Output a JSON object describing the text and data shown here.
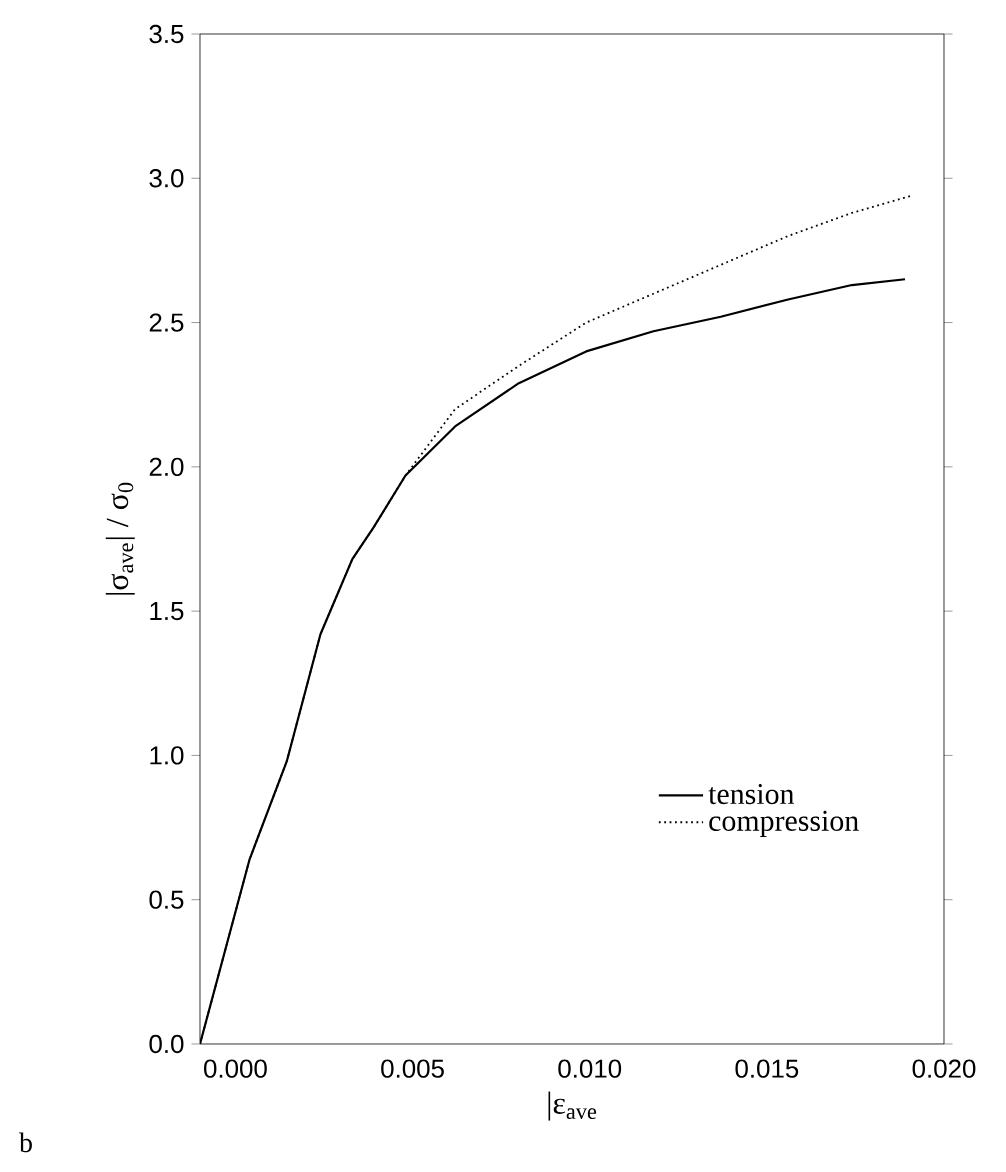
{
  "chart_data": {
    "type": "line",
    "xlabel": "|ε$_{ave}$",
    "ylabel": "|σ$_{ave}$| / σ$_{0}$",
    "x": [
      -0.001,
      0.0004,
      0.00145,
      0.0024,
      0.0033,
      0.0039,
      0.0048,
      0.0062,
      0.008,
      0.0099,
      0.0118,
      0.0137,
      0.0156,
      0.0174,
      0.0189
    ],
    "series": [
      {
        "name": "tension",
        "color": "#000000",
        "line_style": "solid",
        "values": [
          0,
          0.64,
          0.98,
          1.42,
          1.68,
          1.79,
          1.97,
          2.14,
          2.29,
          2.4,
          2.47,
          2.52,
          2.58,
          2.63,
          2.65
        ]
      },
      {
        "name": "compression",
        "color": "#000000",
        "line_style": "dotted",
        "x": [
          -0.001,
          0.0004,
          0.00145,
          0.0024,
          0.0033,
          0.0039,
          0.0048,
          0.0062,
          0.008,
          0.0099,
          0.0118,
          0.0137,
          0.0156,
          0.0174,
          0.0191
        ],
        "values": [
          0,
          0.64,
          0.98,
          1.42,
          1.68,
          1.79,
          1.97,
          2.2,
          2.35,
          2.5,
          2.6,
          2.7,
          2.8,
          2.88,
          2.94
        ]
      }
    ],
    "xlim": [
      -0.001,
      0.02
    ],
    "ylim": [
      0,
      3.5
    ],
    "xticks": [
      {
        "value": 0,
        "label": "0.000"
      },
      {
        "value": 0.005,
        "label": "0.005"
      },
      {
        "value": 0.01,
        "label": "0.010"
      },
      {
        "value": 0.015,
        "label": "0.015"
      },
      {
        "value": 0.02,
        "label": "0.020"
      }
    ],
    "yticks": [
      {
        "value": 0,
        "label": "0.0"
      },
      {
        "value": 0.5,
        "label": "0.5"
      },
      {
        "value": 1.0,
        "label": "1.0"
      },
      {
        "value": 1.5,
        "label": "1.5"
      },
      {
        "value": 2.0,
        "label": "2.0"
      },
      {
        "value": 2.5,
        "label": "2.5"
      },
      {
        "value": 3.0,
        "label": "3.0"
      },
      {
        "value": 3.5,
        "label": "3.5"
      }
    ],
    "grid": false,
    "legend": "bottom right",
    "marker": "none",
    "annotations": [
      "b"
    ]
  }
}
